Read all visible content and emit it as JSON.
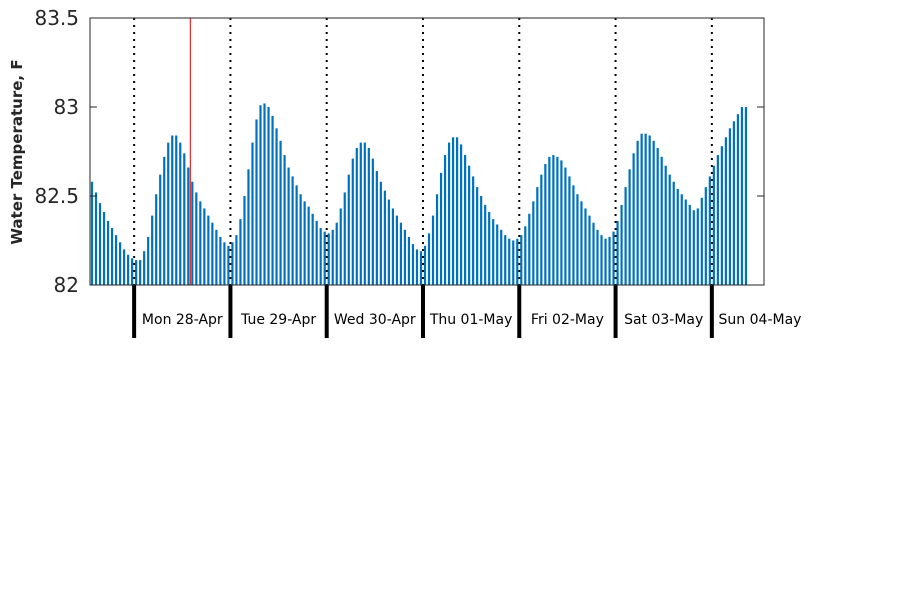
{
  "chart_data": {
    "type": "bar",
    "title": "",
    "xlabel": "",
    "ylabel": "Water Temperature, F",
    "ylim": [
      82,
      83.5
    ],
    "yticks": [
      "82",
      "82.5",
      "83",
      "83.5"
    ],
    "ytick_values": [
      82,
      82.5,
      83,
      83.5
    ],
    "grid": false,
    "bar_color": "#0072bd",
    "day_separator_color": "#000000",
    "current_time_marker_color": "#e00000",
    "current_time_marker_hour": 14,
    "x_start_hour": -11,
    "x_end_hour": 157,
    "days": [
      {
        "label": "Mon 28-Apr",
        "start_hour": 0
      },
      {
        "label": "Tue 29-Apr",
        "start_hour": 24
      },
      {
        "label": "Wed 30-Apr",
        "start_hour": 48
      },
      {
        "label": "Thu 01-May",
        "start_hour": 72
      },
      {
        "label": "Fri 02-May",
        "start_hour": 96
      },
      {
        "label": "Sat 03-May",
        "start_hour": 120
      },
      {
        "label": "Sun 04-May",
        "start_hour": 144
      }
    ],
    "hourly_values": [
      82.58,
      82.52,
      82.46,
      82.41,
      82.36,
      82.32,
      82.28,
      82.24,
      82.2,
      82.17,
      82.15,
      82.14,
      82.14,
      82.19,
      82.27,
      82.39,
      82.51,
      82.62,
      82.72,
      82.8,
      82.84,
      82.84,
      82.8,
      82.74,
      82.66,
      82.58,
      82.52,
      82.47,
      82.43,
      82.39,
      82.35,
      82.31,
      82.27,
      82.24,
      82.22,
      82.24,
      82.28,
      82.37,
      82.5,
      82.65,
      82.8,
      82.93,
      83.01,
      83.02,
      83.0,
      82.95,
      82.88,
      82.81,
      82.73,
      82.66,
      82.61,
      82.56,
      82.51,
      82.47,
      82.44,
      82.4,
      82.36,
      82.32,
      82.3,
      82.29,
      82.31,
      82.35,
      82.43,
      82.52,
      82.62,
      82.71,
      82.77,
      82.8,
      82.8,
      82.77,
      82.71,
      82.64,
      82.58,
      82.53,
      82.48,
      82.43,
      82.39,
      82.35,
      82.31,
      82.27,
      82.23,
      82.2,
      82.19,
      82.22,
      82.29,
      82.39,
      82.51,
      82.63,
      82.73,
      82.8,
      82.83,
      82.83,
      82.79,
      82.73,
      82.67,
      82.61,
      82.55,
      82.5,
      82.45,
      82.41,
      82.37,
      82.34,
      82.31,
      82.28,
      82.26,
      82.25,
      82.26,
      82.28,
      82.33,
      82.4,
      82.47,
      82.55,
      82.62,
      82.68,
      82.72,
      82.73,
      82.72,
      82.7,
      82.66,
      82.61,
      82.56,
      82.51,
      82.47,
      82.43,
      82.39,
      82.35,
      82.31,
      82.28,
      82.26,
      82.27,
      82.3,
      82.36,
      82.45,
      82.55,
      82.65,
      82.74,
      82.81,
      82.85,
      82.85,
      82.84,
      82.81,
      82.77,
      82.72,
      82.67,
      82.62,
      82.58,
      82.54,
      82.51,
      82.48,
      82.45,
      82.42,
      82.43,
      82.49,
      82.55,
      82.61,
      82.67,
      82.73,
      82.78,
      82.83,
      82.88,
      82.92,
      82.96,
      83.0,
      83.0
    ]
  }
}
